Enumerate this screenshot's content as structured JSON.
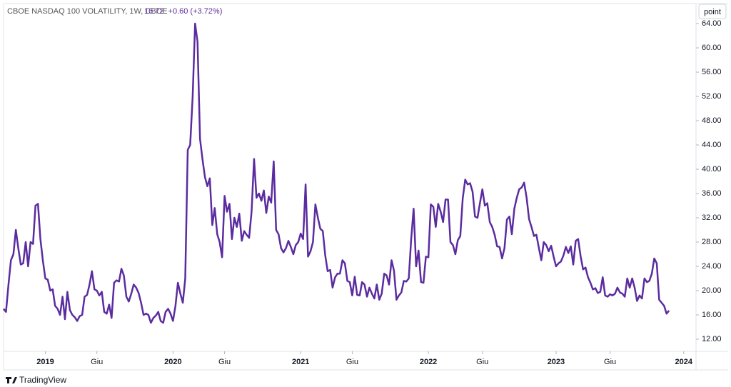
{
  "chart_data": {
    "type": "line",
    "title": "CBOE NASDAQ 100 VOLATILITY, 1W, CBOE",
    "last_price": 16.72,
    "change_text": "+0.60 (+3.72%)",
    "button": "point",
    "brand": "TradingView",
    "color": "#5b2c9f",
    "ylim": [
      10,
      67.3
    ],
    "yticks": [
      {
        "value": 12,
        "label": "12.00"
      },
      {
        "value": 16,
        "label": "16.00"
      },
      {
        "value": 20,
        "label": "20.00"
      },
      {
        "value": 24,
        "label": "24.00"
      },
      {
        "value": 28,
        "label": "28.00"
      },
      {
        "value": 32,
        "label": "32.00"
      },
      {
        "value": 36,
        "label": "36.00"
      },
      {
        "value": 40,
        "label": "40.00"
      },
      {
        "value": 44,
        "label": "44.00"
      },
      {
        "value": 48,
        "label": "48.00"
      },
      {
        "value": 52,
        "label": "52.00"
      },
      {
        "value": 56,
        "label": "56.00"
      },
      {
        "value": 60,
        "label": "60.00"
      },
      {
        "value": 64,
        "label": "64.00"
      }
    ],
    "xlim": [
      0,
      282
    ],
    "xticks": [
      {
        "value": 17,
        "label": "2019"
      },
      {
        "value": 38,
        "label": "Giu"
      },
      {
        "value": 69,
        "label": "2020"
      },
      {
        "value": 90,
        "label": "Giu"
      },
      {
        "value": 121,
        "label": "2021"
      },
      {
        "value": 142,
        "label": "Giu"
      },
      {
        "value": 173,
        "label": "2022"
      },
      {
        "value": 195,
        "label": "Giu"
      },
      {
        "value": 225,
        "label": "2023"
      },
      {
        "value": 247,
        "label": "Giu"
      },
      {
        "value": 277,
        "label": "2024"
      }
    ],
    "values": [
      17,
      16.5,
      21,
      25,
      26,
      30,
      27,
      24.3,
      24.5,
      28,
      24,
      28,
      27.7,
      34,
      34.3,
      28.5,
      25,
      22,
      21.8,
      20,
      20.2,
      17.5,
      17,
      16,
      19,
      15.3,
      19.8,
      16.8,
      16,
      15.6,
      15,
      15.8,
      16,
      19,
      19.3,
      21,
      23.2,
      20.2,
      20,
      19.2,
      19.8,
      16.5,
      16.2,
      17.7,
      15.5,
      21.3,
      21.7,
      21.5,
      23.6,
      22.5,
      19,
      18.2,
      19.5,
      21,
      20.5,
      19.6,
      18,
      16,
      16.2,
      16,
      14.7,
      15.5,
      15.9,
      16.5,
      15,
      14.7,
      16.5,
      17,
      16.2,
      15,
      17.5,
      21.3,
      19.5,
      18,
      22,
      43.2,
      44,
      52,
      64,
      61,
      45,
      41.7,
      38.7,
      37.2,
      38.5,
      30.8,
      33.6,
      29.3,
      28,
      25.5,
      35.6,
      33,
      34.3,
      28.5,
      32,
      30.5,
      32.7,
      28.2,
      29.8,
      29.2,
      28.7,
      33,
      41.7,
      35.3,
      36,
      34.8,
      36.5,
      32.8,
      35.5,
      34.5,
      41.3,
      30,
      29.3,
      27,
      26.3,
      27,
      28.2,
      27.2,
      26,
      27.5,
      28,
      29.4,
      28.5,
      37.5,
      25.6,
      26.5,
      28,
      34.2,
      32,
      30.2,
      29.8,
      25.8,
      23.2,
      23.4,
      20.5,
      22.2,
      22.8,
      22.8,
      25,
      24.5,
      21.6,
      21.4,
      19.2,
      22.3,
      19.3,
      19.2,
      21.4,
      21,
      19,
      20.5,
      19.5,
      18.7,
      21,
      18.5,
      19.5,
      22.8,
      22.5,
      21,
      25,
      23.3,
      18.5,
      19.2,
      19.7,
      21.6,
      21.5,
      22,
      28.5,
      33.5,
      24,
      26.6,
      21.4,
      21.3,
      25.6,
      25.5,
      34.2,
      33.8,
      30.5,
      34.3,
      33,
      31.3,
      35,
      35,
      28,
      27.5,
      26,
      28.3,
      29,
      35.2,
      38.3,
      37.5,
      37.7,
      36.3,
      32.2,
      32,
      34.4,
      36.7,
      34,
      34.4,
      31.3,
      30.5,
      29.2,
      27.3,
      27.2,
      25.3,
      27,
      31.7,
      32.2,
      29.3,
      33.5,
      35.3,
      36.7,
      37,
      37.8,
      35.3,
      31.8,
      30.5,
      29,
      29.2,
      27,
      25,
      28,
      27.5,
      26.5,
      27.4,
      25.6,
      24,
      24.5,
      24.8,
      25.8,
      27.2,
      26.2,
      27.3,
      24.3,
      28.2,
      28.5,
      25.7,
      23.5,
      23.8,
      22.2,
      21.3,
      20.2,
      20.4,
      19.6,
      19.8,
      22.2,
      19.2,
      19,
      19.4,
      19.2,
      19.5,
      20.5,
      19.7,
      19.5,
      19,
      22,
      20.5,
      22,
      20.5,
      18.3,
      19.2,
      18.7,
      22,
      21.4,
      21.6,
      22.8,
      25.3,
      24.5,
      18.5,
      18,
      17.5,
      16.2,
      16.7
    ]
  }
}
